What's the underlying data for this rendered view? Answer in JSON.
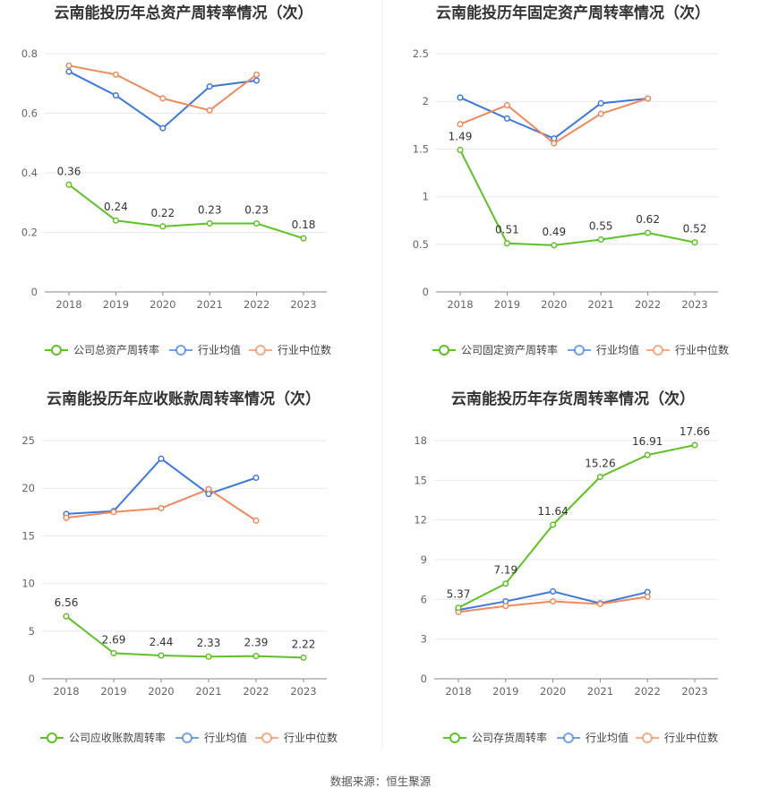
{
  "colors": {
    "company": "#5ec127",
    "avg": "#3f78dc",
    "median": "#f08a5d",
    "grid": "#e6e9ef",
    "axis": "#888888",
    "divider": "#eeeeee"
  },
  "source_text": "数据来源：恒生聚源",
  "chart_data": [
    {
      "type": "line",
      "title": "云南能投历年总资产周转率情况（次）",
      "categories": [
        "2018",
        "2019",
        "2020",
        "2021",
        "2022",
        "2023"
      ],
      "ylim": [
        0,
        0.8
      ],
      "yticks": [
        "0",
        "0.2",
        "0.4",
        "0.6",
        "0.8"
      ],
      "legend_position": "bottom",
      "series": [
        {
          "name": "公司总资产周转率",
          "values": [
            0.36,
            0.24,
            0.22,
            0.23,
            0.23,
            0.18
          ],
          "labels": [
            "0.36",
            "0.24",
            "0.22",
            "0.23",
            "0.23",
            "0.18"
          ]
        },
        {
          "name": "行业均值",
          "values": [
            0.74,
            0.66,
            0.55,
            0.69,
            0.71,
            null
          ]
        },
        {
          "name": "行业中位数",
          "values": [
            0.76,
            0.73,
            0.65,
            0.61,
            0.73,
            null
          ]
        }
      ]
    },
    {
      "type": "line",
      "title": "云南能投历年固定资产周转率情况（次）",
      "categories": [
        "2018",
        "2019",
        "2020",
        "2021",
        "2022",
        "2023"
      ],
      "ylim": [
        0,
        2.5
      ],
      "yticks": [
        "0",
        "0.5",
        "1",
        "1.5",
        "2",
        "2.5"
      ],
      "legend_position": "bottom",
      "series": [
        {
          "name": "公司固定资产周转率",
          "values": [
            1.49,
            0.51,
            0.49,
            0.55,
            0.62,
            0.52
          ],
          "labels": [
            "1.49",
            "0.51",
            "0.49",
            "0.55",
            "0.62",
            "0.52"
          ]
        },
        {
          "name": "行业均值",
          "values": [
            2.04,
            1.82,
            1.61,
            1.98,
            2.03,
            null
          ]
        },
        {
          "name": "行业中位数",
          "values": [
            1.76,
            1.96,
            1.56,
            1.87,
            2.03,
            null
          ]
        }
      ]
    },
    {
      "type": "line",
      "title": "云南能投历年应收账款周转率情况（次）",
      "categories": [
        "2018",
        "2019",
        "2020",
        "2021",
        "2022",
        "2023"
      ],
      "ylim": [
        0,
        25
      ],
      "yticks": [
        "0",
        "5",
        "10",
        "15",
        "20",
        "25"
      ],
      "legend_position": "bottom",
      "series": [
        {
          "name": "公司应收账款周转率",
          "values": [
            6.56,
            2.69,
            2.44,
            2.33,
            2.39,
            2.22
          ],
          "labels": [
            "6.56",
            "2.69",
            "2.44",
            "2.33",
            "2.39",
            "2.22"
          ]
        },
        {
          "name": "行业均值",
          "values": [
            17.3,
            17.6,
            23.1,
            19.4,
            21.1,
            null
          ]
        },
        {
          "name": "行业中位数",
          "values": [
            16.9,
            17.5,
            17.9,
            19.9,
            16.6,
            null
          ]
        }
      ]
    },
    {
      "type": "line",
      "title": "云南能投历年存货周转率情况（次）",
      "categories": [
        "2018",
        "2019",
        "2020",
        "2021",
        "2022",
        "2023"
      ],
      "ylim": [
        0,
        18
      ],
      "yticks": [
        "0",
        "3",
        "6",
        "9",
        "12",
        "15",
        "18"
      ],
      "legend_position": "bottom",
      "series": [
        {
          "name": "公司存货周转率",
          "values": [
            5.37,
            7.19,
            11.64,
            15.26,
            16.91,
            17.66
          ],
          "labels": [
            "5.37",
            "7.19",
            "11.64",
            "15.26",
            "16.91",
            "17.66"
          ]
        },
        {
          "name": "行业均值",
          "values": [
            5.2,
            5.85,
            6.6,
            5.7,
            6.55,
            null
          ]
        },
        {
          "name": "行业中位数",
          "values": [
            5.05,
            5.5,
            5.85,
            5.65,
            6.2,
            null
          ]
        }
      ]
    }
  ]
}
